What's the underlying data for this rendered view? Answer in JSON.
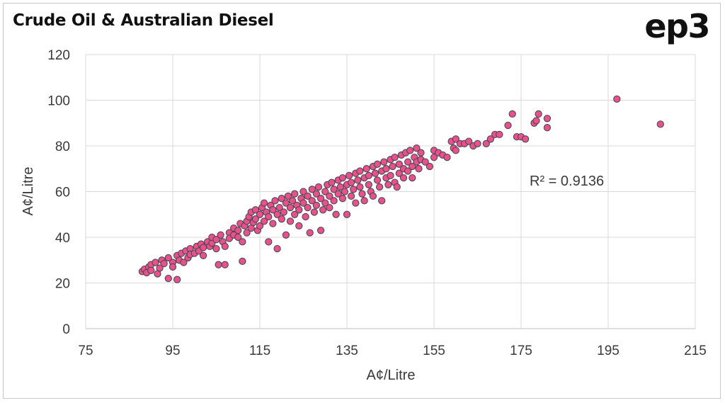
{
  "header": {
    "title": "Crude Oil & Australian Diesel",
    "logo": "ep3"
  },
  "chart_data": {
    "type": "scatter",
    "title": "Crude Oil & Australian Diesel",
    "xlabel": "A¢/Litre",
    "ylabel": "A¢/Litre",
    "xlim": [
      75,
      215
    ],
    "ylim": [
      0,
      120
    ],
    "x_ticks": [
      75,
      95,
      115,
      135,
      155,
      175,
      195,
      215
    ],
    "y_ticks": [
      0,
      20,
      40,
      60,
      80,
      100,
      120
    ],
    "grid": true,
    "annotation": "R² = 0.9136",
    "marker_fill": "#e8508f",
    "marker_edge": "#4a4a4a",
    "points": [
      [
        88,
        25
      ],
      [
        88.5,
        26
      ],
      [
        89,
        24.5
      ],
      [
        89.5,
        27
      ],
      [
        90,
        28
      ],
      [
        90,
        25.5
      ],
      [
        91,
        29
      ],
      [
        91.5,
        24
      ],
      [
        92,
        26.5
      ],
      [
        92.5,
        30
      ],
      [
        93,
        28.5
      ],
      [
        94,
        31
      ],
      [
        94,
        22
      ],
      [
        95,
        29
      ],
      [
        95,
        27
      ],
      [
        96,
        32
      ],
      [
        96,
        21.5
      ],
      [
        96.5,
        30
      ],
      [
        97,
        33
      ],
      [
        97.5,
        29
      ],
      [
        98,
        34
      ],
      [
        98.5,
        31
      ],
      [
        99,
        35
      ],
      [
        99,
        32.5
      ],
      [
        100,
        33
      ],
      [
        100.5,
        36
      ],
      [
        101,
        34
      ],
      [
        101.5,
        37
      ],
      [
        102,
        35.5
      ],
      [
        102,
        32
      ],
      [
        103,
        38
      ],
      [
        103.5,
        36
      ],
      [
        104,
        37.5
      ],
      [
        104,
        40
      ],
      [
        105,
        39
      ],
      [
        105,
        35
      ],
      [
        105.5,
        28
      ],
      [
        106,
        41
      ],
      [
        106.5,
        38
      ],
      [
        107,
        36
      ],
      [
        107,
        28
      ],
      [
        108,
        42
      ],
      [
        108,
        39.5
      ],
      [
        109,
        41
      ],
      [
        109,
        44
      ],
      [
        110,
        43
      ],
      [
        110,
        40
      ],
      [
        110.5,
        46
      ],
      [
        111,
        29.5
      ],
      [
        111,
        38
      ],
      [
        111.5,
        45
      ],
      [
        112,
        47
      ],
      [
        112,
        42
      ],
      [
        112.5,
        49
      ],
      [
        113,
        44
      ],
      [
        113,
        51
      ],
      [
        113.5,
        46.5
      ],
      [
        114,
        48
      ],
      [
        114,
        52
      ],
      [
        114.5,
        43
      ],
      [
        115,
        50
      ],
      [
        115,
        45
      ],
      [
        115.5,
        53
      ],
      [
        116,
        47
      ],
      [
        116,
        55
      ],
      [
        116.5,
        51
      ],
      [
        117,
        49
      ],
      [
        117,
        38
      ],
      [
        117.5,
        54
      ],
      [
        118,
        52
      ],
      [
        118,
        46
      ],
      [
        118.5,
        56
      ],
      [
        119,
        50
      ],
      [
        119,
        35
      ],
      [
        119.5,
        53
      ],
      [
        120,
        57
      ],
      [
        120,
        48
      ],
      [
        120.5,
        51
      ],
      [
        121,
        55
      ],
      [
        121,
        41
      ],
      [
        121.5,
        58
      ],
      [
        122,
        53
      ],
      [
        122,
        47
      ],
      [
        122.5,
        56
      ],
      [
        123,
        50
      ],
      [
        123,
        59
      ],
      [
        123.5,
        54
      ],
      [
        124,
        52
      ],
      [
        124,
        45
      ],
      [
        124.5,
        57
      ],
      [
        125,
        55
      ],
      [
        125,
        60
      ],
      [
        125.5,
        49
      ],
      [
        126,
        58
      ],
      [
        126,
        53
      ],
      [
        126.5,
        42
      ],
      [
        127,
        56
      ],
      [
        127,
        61
      ],
      [
        127.5,
        51
      ],
      [
        128,
        59
      ],
      [
        128,
        54
      ],
      [
        128.5,
        62
      ],
      [
        129,
        57
      ],
      [
        129,
        43
      ],
      [
        129.5,
        52
      ],
      [
        130,
        60
      ],
      [
        130,
        55
      ],
      [
        130.5,
        63
      ],
      [
        131,
        58
      ],
      [
        131,
        53
      ],
      [
        131.5,
        64
      ],
      [
        132,
        61
      ],
      [
        132,
        56
      ],
      [
        132.5,
        50
      ],
      [
        133,
        65
      ],
      [
        133,
        59
      ],
      [
        133.5,
        62
      ],
      [
        134,
        57
      ],
      [
        134,
        66
      ],
      [
        134.5,
        60
      ],
      [
        135,
        63
      ],
      [
        135,
        50
      ],
      [
        135.5,
        67
      ],
      [
        136,
        58
      ],
      [
        136,
        64
      ],
      [
        136.5,
        61
      ],
      [
        137,
        68
      ],
      [
        137,
        55
      ],
      [
        137.5,
        65
      ],
      [
        138,
        62
      ],
      [
        138,
        69
      ],
      [
        138.5,
        59
      ],
      [
        139,
        66
      ],
      [
        139,
        56
      ],
      [
        139.5,
        70
      ],
      [
        140,
        63
      ],
      [
        140,
        67
      ],
      [
        140.5,
        60
      ],
      [
        141,
        71
      ],
      [
        141,
        58
      ],
      [
        141.5,
        68
      ],
      [
        142,
        65
      ],
      [
        142,
        72
      ],
      [
        142.5,
        62
      ],
      [
        143,
        69
      ],
      [
        143,
        56
      ],
      [
        143.5,
        73
      ],
      [
        144,
        66
      ],
      [
        144,
        70
      ],
      [
        144.5,
        63
      ],
      [
        145,
        74
      ],
      [
        145,
        67
      ],
      [
        145.5,
        71
      ],
      [
        146,
        64
      ],
      [
        146,
        75
      ],
      [
        146.5,
        62
      ],
      [
        147,
        72
      ],
      [
        147,
        68
      ],
      [
        147.5,
        76
      ],
      [
        148,
        70
      ],
      [
        148,
        66
      ],
      [
        148.5,
        77
      ],
      [
        149,
        73
      ],
      [
        149,
        69
      ],
      [
        149.5,
        78
      ],
      [
        150,
        71
      ],
      [
        150,
        66
      ],
      [
        150.5,
        75
      ],
      [
        151,
        79
      ],
      [
        151,
        73
      ],
      [
        151.5,
        70
      ],
      [
        152,
        77
      ],
      [
        152,
        74
      ],
      [
        153,
        73
      ],
      [
        154,
        71
      ],
      [
        155,
        78
      ],
      [
        155,
        75
      ],
      [
        156,
        77
      ],
      [
        157,
        76
      ],
      [
        158,
        75
      ],
      [
        159,
        82
      ],
      [
        159.5,
        79
      ],
      [
        160,
        83
      ],
      [
        160,
        78
      ],
      [
        161,
        81
      ],
      [
        162,
        81
      ],
      [
        163,
        82
      ],
      [
        164,
        80
      ],
      [
        165,
        81
      ],
      [
        167,
        81
      ],
      [
        168,
        83
      ],
      [
        169,
        85
      ],
      [
        170,
        85
      ],
      [
        172,
        89
      ],
      [
        173,
        94
      ],
      [
        174,
        84
      ],
      [
        175,
        84
      ],
      [
        176,
        83
      ],
      [
        178,
        90
      ],
      [
        178.5,
        91
      ],
      [
        179,
        94
      ],
      [
        181,
        92
      ],
      [
        181,
        88
      ],
      [
        197,
        100.5
      ],
      [
        207,
        89.5
      ]
    ]
  }
}
